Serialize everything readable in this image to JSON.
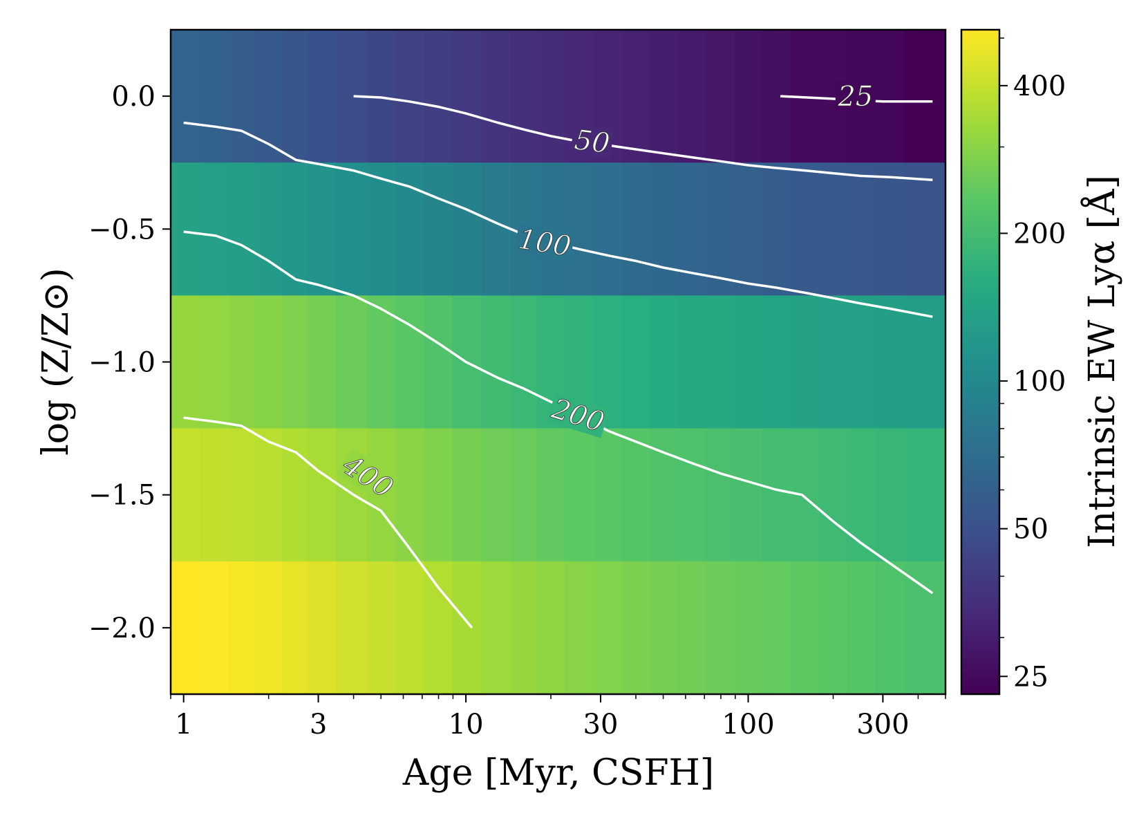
{
  "chart_data": {
    "type": "heatmap",
    "title": "",
    "xlabel": "Age [Myr, CSFH]",
    "ylabel": "log (Z/Z⊙)",
    "colorbar_label": "Intrinsic EW Lyα [Å]",
    "x_scale": "log",
    "xlim": [
      0.9,
      500
    ],
    "ylim": [
      -2.25,
      0.25
    ],
    "x_ticks": [
      1,
      3,
      10,
      30,
      100,
      300
    ],
    "x_tick_labels": [
      "1",
      "3",
      "10",
      "30",
      "100",
      "300"
    ],
    "y_ticks": [
      0.0,
      -0.5,
      -1.0,
      -1.5,
      -2.0
    ],
    "y_tick_labels": [
      "0.0",
      "−0.5",
      "−1.0",
      "−1.5",
      "−2.0"
    ],
    "colormap": "viridis",
    "color_scale": "log",
    "color_range": [
      23,
      520
    ],
    "colorbar_ticks": [
      25,
      50,
      100,
      200,
      400
    ],
    "colorbar_tick_labels": [
      "25",
      "50",
      "100",
      "200",
      "400"
    ],
    "grid": false,
    "ages": [
      1,
      1.3,
      1.6,
      2,
      2.5,
      3,
      4,
      5,
      6.3,
      8,
      10,
      13,
      16,
      20,
      25,
      32,
      40,
      50,
      63,
      80,
      100,
      125,
      160,
      200,
      250,
      320,
      400
    ],
    "metallicities": [
      0.0,
      -0.5,
      -1.0,
      -1.5,
      -2.0
    ],
    "ew_values": [
      [
        63,
        61,
        59,
        56,
        53,
        51,
        48,
        45,
        43,
        41,
        39,
        37,
        35,
        34,
        33,
        32,
        31,
        30,
        29,
        28,
        27,
        26,
        25,
        25,
        24,
        24,
        23
      ],
      [
        140,
        136,
        132,
        127,
        121,
        116,
        110,
        105,
        100,
        95,
        90,
        85,
        80,
        77,
        74,
        71,
        68,
        66,
        64,
        62,
        60,
        58,
        56,
        55,
        54,
        53,
        52
      ],
      [
        320,
        312,
        304,
        295,
        284,
        272,
        258,
        245,
        232,
        220,
        205,
        195,
        187,
        180,
        174,
        168,
        163,
        158,
        154,
        150,
        146,
        143,
        140,
        137,
        135,
        133,
        131
      ],
      [
        400,
        394,
        385,
        375,
        362,
        348,
        330,
        315,
        300,
        286,
        272,
        262,
        253,
        245,
        238,
        231,
        225,
        220,
        215,
        210,
        206,
        202,
        198,
        193,
        188,
        184,
        180
      ],
      [
        520,
        515,
        505,
        490,
        470,
        450,
        425,
        405,
        385,
        365,
        345,
        330,
        318,
        307,
        297,
        288,
        280,
        272,
        265,
        258,
        252,
        246,
        240,
        232,
        225,
        218,
        212
      ]
    ],
    "contours": [
      {
        "level_label": "25",
        "x": [
          130,
          200,
          300,
          450
        ],
        "y": [
          0.0,
          -0.01,
          -0.02,
          -0.02
        ]
      },
      {
        "level_label": "50",
        "x": [
          4,
          5,
          6.3,
          8,
          10,
          13,
          16,
          20,
          25,
          32,
          40,
          50,
          63,
          80,
          100,
          125,
          160,
          200,
          250,
          320,
          450
        ],
        "y": [
          0.0,
          -0.005,
          -0.02,
          -0.04,
          -0.065,
          -0.1,
          -0.125,
          -0.15,
          -0.17,
          -0.185,
          -0.2,
          -0.215,
          -0.23,
          -0.245,
          -0.26,
          -0.27,
          -0.28,
          -0.29,
          -0.3,
          -0.305,
          -0.315
        ]
      },
      {
        "level_label": "100",
        "x": [
          1,
          1.3,
          1.6,
          2,
          2.5,
          3,
          4,
          5,
          6.3,
          8,
          10,
          13,
          16,
          20,
          25,
          32,
          40,
          50,
          63,
          80,
          100,
          125,
          160,
          200,
          250,
          320,
          450
        ],
        "y": [
          -0.1,
          -0.115,
          -0.13,
          -0.18,
          -0.24,
          -0.255,
          -0.28,
          -0.31,
          -0.34,
          -0.385,
          -0.425,
          -0.48,
          -0.52,
          -0.55,
          -0.575,
          -0.6,
          -0.62,
          -0.645,
          -0.665,
          -0.685,
          -0.705,
          -0.72,
          -0.74,
          -0.76,
          -0.78,
          -0.8,
          -0.83
        ]
      },
      {
        "level_label": "200",
        "x": [
          1,
          1.3,
          1.6,
          2,
          2.5,
          3,
          4,
          5,
          6.3,
          8,
          10,
          13,
          16,
          20,
          25,
          32,
          40,
          50,
          63,
          80,
          100,
          125,
          155,
          200,
          250,
          320,
          450
        ],
        "y": [
          -0.51,
          -0.525,
          -0.56,
          -0.62,
          -0.69,
          -0.71,
          -0.75,
          -0.8,
          -0.86,
          -0.93,
          -1.0,
          -1.06,
          -1.1,
          -1.15,
          -1.2,
          -1.26,
          -1.3,
          -1.34,
          -1.38,
          -1.42,
          -1.45,
          -1.48,
          -1.5,
          -1.6,
          -1.68,
          -1.76,
          -1.87
        ]
      },
      {
        "level_label": "400",
        "x": [
          1,
          1.3,
          1.6,
          2,
          2.5,
          3,
          4,
          5,
          6.3,
          8,
          10.5
        ],
        "y": [
          -1.21,
          -1.225,
          -1.24,
          -1.3,
          -1.34,
          -1.41,
          -1.5,
          -1.56,
          -1.7,
          -1.85,
          -2.0
        ]
      }
    ],
    "contour_label_positions": [
      {
        "text": "25",
        "x": 240,
        "y": 0.0,
        "angle": 0
      },
      {
        "text": "50",
        "x": 28,
        "y": -0.17,
        "angle": 7
      },
      {
        "text": "100",
        "x": 19,
        "y": -0.55,
        "angle": 9
      },
      {
        "text": "200",
        "x": 25,
        "y": -1.2,
        "angle": 17
      },
      {
        "text": "400",
        "x": 4.5,
        "y": -1.43,
        "angle": 33
      }
    ],
    "contour_color": "#ffffff"
  }
}
